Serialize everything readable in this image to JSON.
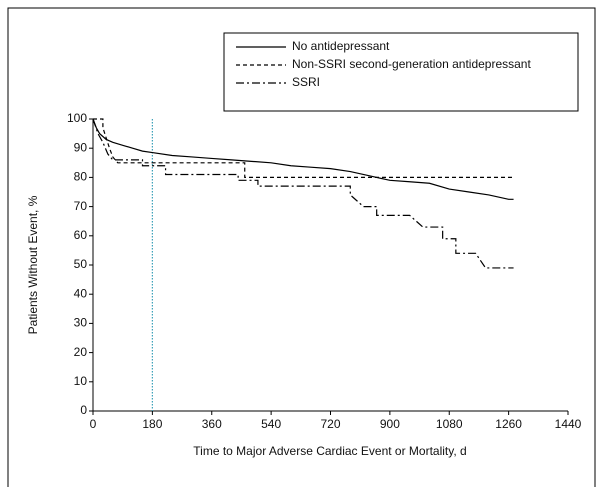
{
  "chart_data": {
    "type": "line",
    "xlabel": "Time to Major Adverse Cardiac Event or Mortality, d",
    "ylabel": "Patients Without Event, %",
    "xlim": [
      0,
      1440
    ],
    "ylim": [
      0,
      100
    ],
    "xticks": [
      0,
      180,
      360,
      540,
      720,
      900,
      1080,
      1260,
      1440
    ],
    "yticks": [
      0,
      10,
      20,
      30,
      40,
      50,
      60,
      70,
      80,
      90,
      100
    ],
    "legend": "upper right",
    "vline": {
      "x": 180,
      "color": "#3aa0b8"
    },
    "series": [
      {
        "name": "No antidepressant",
        "color": "#000000",
        "style": "solid",
        "x": [
          0,
          10,
          20,
          40,
          60,
          90,
          120,
          150,
          180,
          240,
          300,
          360,
          420,
          480,
          540,
          600,
          660,
          720,
          780,
          840,
          900,
          960,
          1020,
          1080,
          1140,
          1200,
          1260,
          1275
        ],
        "values": [
          100,
          97,
          95,
          93,
          92,
          91,
          90,
          89,
          88.5,
          87.5,
          87,
          86.5,
          86,
          85.5,
          85,
          84,
          83.5,
          83,
          82,
          80.5,
          79,
          78.5,
          78,
          76,
          75,
          74,
          72.5,
          72.5
        ]
      },
      {
        "name": "Non-SSRI second-generation antidepressant",
        "color": "#000000",
        "style": "dashed",
        "x": [
          0,
          30,
          30,
          50,
          60,
          75,
          460,
          460,
          1275
        ],
        "values": [
          100,
          100,
          97,
          90,
          87,
          85,
          85,
          80,
          80
        ]
      },
      {
        "name": "SSRI",
        "color": "#000000",
        "style": "dashdot",
        "x": [
          0,
          15,
          30,
          45,
          60,
          150,
          150,
          220,
          220,
          440,
          440,
          500,
          500,
          780,
          780,
          800,
          820,
          860,
          860,
          960,
          1000,
          1060,
          1060,
          1100,
          1100,
          1160,
          1190,
          1275
        ],
        "values": [
          100,
          95,
          92,
          88,
          86,
          86,
          84,
          84,
          81,
          81,
          79,
          79,
          77,
          77,
          74,
          72,
          70,
          70,
          67,
          67,
          63,
          63,
          59,
          59,
          54,
          54,
          49,
          49
        ]
      }
    ]
  }
}
